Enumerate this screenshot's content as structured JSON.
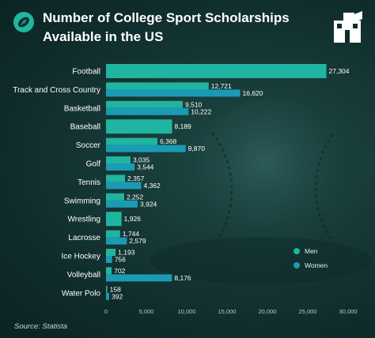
{
  "header": {
    "title": "Number of College Sport Scholarships Available in the US",
    "left_icon": "football-icon",
    "brand_icon": "book-logo-icon"
  },
  "source_text": "Source: Statista",
  "colors": {
    "men": "#1fb5a0",
    "women": "#1a9bb3"
  },
  "chart_data": {
    "type": "bar",
    "orientation": "horizontal",
    "title": "Number of College Sport Scholarships Available in the US",
    "categories": [
      "Football",
      "Track and Cross Country",
      "Basketball",
      "Baseball",
      "Soccer",
      "Golf",
      "Tennis",
      "Swimming",
      "Wrestling",
      "Lacrosse",
      "Ice Hockey",
      "Volleyball",
      "Water Polo"
    ],
    "series": [
      {
        "name": "Men",
        "values": [
          27304,
          12721,
          9510,
          8189,
          6368,
          3035,
          2357,
          2252,
          1926,
          1744,
          1193,
          702,
          158
        ]
      },
      {
        "name": "Women",
        "values": [
          null,
          16620,
          10222,
          null,
          9870,
          3544,
          4362,
          3924,
          null,
          2579,
          756,
          8176,
          392
        ]
      }
    ],
    "value_labels": {
      "Men": [
        "27,304",
        "12,721",
        "9,510",
        "8,189",
        "6,368",
        "3,035",
        "2,357",
        "2,252",
        "1,926",
        "1,744",
        "1,193",
        "702",
        "158"
      ],
      "Women": [
        "",
        "16,620",
        "10,222",
        "",
        "9,870",
        "3,544",
        "4,362",
        "3,924",
        "",
        "2,579",
        "756",
        "8,176",
        "392"
      ]
    },
    "xlim": [
      0,
      30000
    ],
    "xticks": [
      0,
      5000,
      10000,
      15000,
      20000,
      25000,
      30000
    ],
    "xtick_labels": [
      "0",
      "5,000",
      "10,000",
      "15,000",
      "20,000",
      "25,000",
      "30,000"
    ],
    "grid": false,
    "legend": {
      "position": "right",
      "items": [
        "Men",
        "Women"
      ]
    }
  }
}
